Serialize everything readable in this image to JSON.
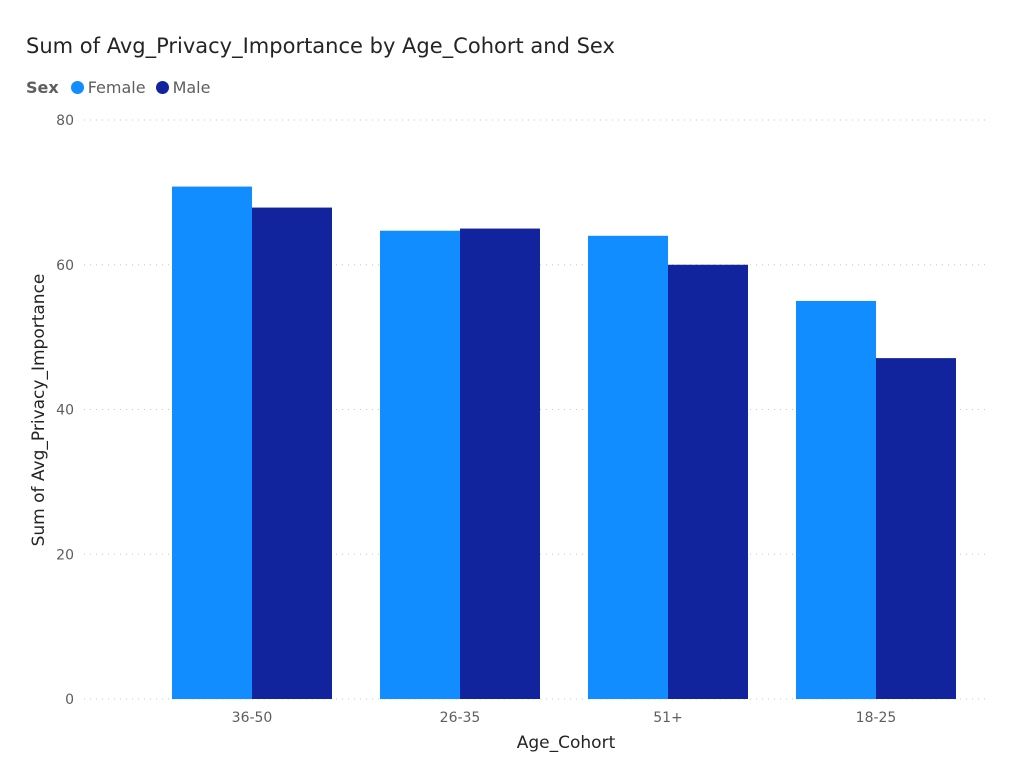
{
  "chart_data": {
    "type": "bar",
    "title": "Sum of Avg_Privacy_Importance by Age_Cohort and Sex",
    "legend_title": "Sex",
    "categories": [
      "36-50",
      "26-35",
      "51+",
      "18-25"
    ],
    "series": [
      {
        "name": "Female",
        "color": "#118dff",
        "values": [
          70.8,
          64.7,
          64.0,
          55.0
        ]
      },
      {
        "name": "Male",
        "color": "#12239e",
        "values": [
          67.9,
          65.0,
          60.0,
          47.1
        ]
      }
    ],
    "xlabel": "Age_Cohort",
    "ylabel": "Sum of Avg_Privacy_Importance",
    "ylim": [
      0,
      80
    ],
    "yticks": [
      "0",
      "20",
      "40",
      "60",
      "80"
    ],
    "grid": true,
    "legend_position": "top-left"
  }
}
